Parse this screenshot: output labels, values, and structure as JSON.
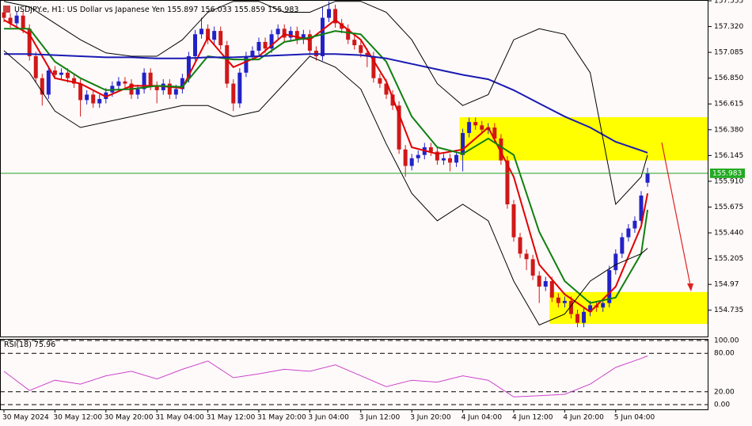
{
  "chart_data": [
    {
      "type": "candlestick",
      "title": "USDJPY.e, H1:  US Dollar vs Japanese Yen",
      "up_color": "#2222c8",
      "down_color": "#d01818",
      "ohlc": [
        [
          157.45,
          157.49,
          157.36,
          157.4
        ],
        [
          157.4,
          157.44,
          157.31,
          157.35
        ],
        [
          157.35,
          157.46,
          157.31,
          157.42
        ],
        [
          157.42,
          157.46,
          157.26,
          157.3
        ],
        [
          157.3,
          157.34,
          157.01,
          157.05
        ],
        [
          157.05,
          157.09,
          156.81,
          156.85
        ],
        [
          156.85,
          156.89,
          156.6,
          156.7
        ],
        [
          156.7,
          156.96,
          156.66,
          156.92
        ],
        [
          156.92,
          156.96,
          156.84,
          156.88
        ],
        [
          156.88,
          156.94,
          156.84,
          156.9
        ],
        [
          156.9,
          156.94,
          156.81,
          156.85
        ],
        [
          156.85,
          156.89,
          156.76,
          156.8
        ],
        [
          156.8,
          156.84,
          156.5,
          156.65
        ],
        [
          156.65,
          156.74,
          156.61,
          156.7
        ],
        [
          156.7,
          156.74,
          156.58,
          156.62
        ],
        [
          156.62,
          156.7,
          156.58,
          156.66
        ],
        [
          156.66,
          156.76,
          156.62,
          156.72
        ],
        [
          156.72,
          156.82,
          156.68,
          156.78
        ],
        [
          156.78,
          156.86,
          156.74,
          156.82
        ],
        [
          156.82,
          156.86,
          156.76,
          156.8
        ],
        [
          156.8,
          156.84,
          156.66,
          156.7
        ],
        [
          156.7,
          156.79,
          156.66,
          156.75
        ],
        [
          156.75,
          156.94,
          156.71,
          156.9
        ],
        [
          156.9,
          156.94,
          156.74,
          156.78
        ],
        [
          156.78,
          156.82,
          156.62,
          156.74
        ],
        [
          156.74,
          156.84,
          156.7,
          156.8
        ],
        [
          156.8,
          156.84,
          156.66,
          156.7
        ],
        [
          156.7,
          156.79,
          156.66,
          156.75
        ],
        [
          156.75,
          156.89,
          156.71,
          156.85
        ],
        [
          156.85,
          157.09,
          156.81,
          157.05
        ],
        [
          157.05,
          157.29,
          157.01,
          157.25
        ],
        [
          157.25,
          157.4,
          157.21,
          157.3
        ],
        [
          157.3,
          157.34,
          157.16,
          157.2
        ],
        [
          157.2,
          157.32,
          157.16,
          157.28
        ],
        [
          157.28,
          157.32,
          157.11,
          157.15
        ],
        [
          157.15,
          157.19,
          156.76,
          156.8
        ],
        [
          156.8,
          156.84,
          156.55,
          156.62
        ],
        [
          156.62,
          156.94,
          156.58,
          156.9
        ],
        [
          156.9,
          157.09,
          156.86,
          157.05
        ],
        [
          157.05,
          157.14,
          157.01,
          157.1
        ],
        [
          157.1,
          157.22,
          157.06,
          157.18
        ],
        [
          157.18,
          157.22,
          157.08,
          157.12
        ],
        [
          157.12,
          157.29,
          157.08,
          157.25
        ],
        [
          157.25,
          157.34,
          157.21,
          157.3
        ],
        [
          157.3,
          157.34,
          157.18,
          157.22
        ],
        [
          157.22,
          157.32,
          157.18,
          157.28
        ],
        [
          157.28,
          157.32,
          157.16,
          157.2
        ],
        [
          157.2,
          157.29,
          157.16,
          157.25
        ],
        [
          157.25,
          157.29,
          157.06,
          157.1
        ],
        [
          157.1,
          157.14,
          157.01,
          157.05
        ],
        [
          157.05,
          157.5,
          157.01,
          157.4
        ],
        [
          157.4,
          157.55,
          157.36,
          157.48
        ],
        [
          157.48,
          157.52,
          157.31,
          157.35
        ],
        [
          157.35,
          157.39,
          157.26,
          157.3
        ],
        [
          157.3,
          157.34,
          157.16,
          157.2
        ],
        [
          157.2,
          157.24,
          157.11,
          157.15
        ],
        [
          157.15,
          157.19,
          157.04,
          157.08
        ],
        [
          157.08,
          157.12,
          156.95,
          157.05
        ],
        [
          157.05,
          157.09,
          156.81,
          156.85
        ],
        [
          156.85,
          156.89,
          156.76,
          156.8
        ],
        [
          156.8,
          156.84,
          156.66,
          156.7
        ],
        [
          156.7,
          156.74,
          156.56,
          156.6
        ],
        [
          156.6,
          156.64,
          156.16,
          156.2
        ],
        [
          156.2,
          156.24,
          155.95,
          156.05
        ],
        [
          156.05,
          156.16,
          156.01,
          156.12
        ],
        [
          156.12,
          156.19,
          156.08,
          156.15
        ],
        [
          156.15,
          156.26,
          156.11,
          156.22
        ],
        [
          156.22,
          156.26,
          156.14,
          156.18
        ],
        [
          156.18,
          156.22,
          156.06,
          156.1
        ],
        [
          156.1,
          156.16,
          156.06,
          156.12
        ],
        [
          156.12,
          156.16,
          156.0,
          156.08
        ],
        [
          156.08,
          156.19,
          156.04,
          156.15
        ],
        [
          156.15,
          156.39,
          156.0,
          156.35
        ],
        [
          156.35,
          156.49,
          156.31,
          156.45
        ],
        [
          156.45,
          156.49,
          156.38,
          156.42
        ],
        [
          156.42,
          156.46,
          156.34,
          156.38
        ],
        [
          156.38,
          156.44,
          156.34,
          156.4
        ],
        [
          156.4,
          156.44,
          156.26,
          156.3
        ],
        [
          156.3,
          156.34,
          156.06,
          156.1
        ],
        [
          156.1,
          156.14,
          155.66,
          155.7
        ],
        [
          155.7,
          155.74,
          155.36,
          155.4
        ],
        [
          155.4,
          155.44,
          155.21,
          155.25
        ],
        [
          155.25,
          155.29,
          155.1,
          155.2
        ],
        [
          155.2,
          155.24,
          155.01,
          155.05
        ],
        [
          155.05,
          155.09,
          154.8,
          154.95
        ],
        [
          154.95,
          155.04,
          154.91,
          155.0
        ],
        [
          155.0,
          155.04,
          154.81,
          154.85
        ],
        [
          154.85,
          154.89,
          154.76,
          154.8
        ],
        [
          154.8,
          154.86,
          154.76,
          154.82
        ],
        [
          154.82,
          154.86,
          154.66,
          154.7
        ],
        [
          154.7,
          154.74,
          154.58,
          154.62
        ],
        [
          154.62,
          154.76,
          154.58,
          154.72
        ],
        [
          154.72,
          154.82,
          154.68,
          154.78
        ],
        [
          154.78,
          154.82,
          154.72,
          154.76
        ],
        [
          154.76,
          154.84,
          154.72,
          154.8
        ],
        [
          154.8,
          155.14,
          154.76,
          155.1
        ],
        [
          155.1,
          155.29,
          155.06,
          155.25
        ],
        [
          155.25,
          155.44,
          155.21,
          155.4
        ],
        [
          155.4,
          155.52,
          155.36,
          155.48
        ],
        [
          155.48,
          155.59,
          155.44,
          155.55
        ],
        [
          155.55,
          155.82,
          155.51,
          155.78
        ],
        [
          155.897,
          156.033,
          155.859,
          155.983
        ]
      ],
      "series": [
        {
          "color": "#e00000",
          "x": [
            0,
            4,
            8,
            12,
            16,
            20,
            24,
            28,
            32,
            36,
            40,
            44,
            48,
            52,
            56,
            60,
            64,
            68,
            72,
            76,
            80,
            84,
            88,
            92,
            96,
            100,
            101
          ],
          "values": [
            157.38,
            157.25,
            156.85,
            156.8,
            156.68,
            156.78,
            156.78,
            156.76,
            157.22,
            156.95,
            157.05,
            157.25,
            157.2,
            157.38,
            157.2,
            156.82,
            156.22,
            156.16,
            156.2,
            156.4,
            155.95,
            155.15,
            154.88,
            154.72,
            154.95,
            155.5,
            155.8
          ]
        },
        {
          "color": "#108010",
          "x": [
            0,
            4,
            8,
            12,
            16,
            20,
            24,
            28,
            32,
            36,
            40,
            44,
            48,
            52,
            56,
            60,
            64,
            68,
            72,
            76,
            80,
            84,
            88,
            92,
            96,
            100,
            101
          ],
          "values": [
            157.3,
            157.3,
            157.0,
            156.85,
            156.74,
            156.75,
            156.78,
            156.77,
            157.05,
            157.02,
            157.02,
            157.18,
            157.22,
            157.28,
            157.25,
            157.0,
            156.5,
            156.22,
            156.16,
            156.3,
            156.15,
            155.45,
            155.0,
            154.8,
            154.85,
            155.25,
            155.65
          ]
        },
        {
          "color": "#1a1ab4",
          "x": [
            0,
            4,
            8,
            12,
            16,
            20,
            24,
            28,
            32,
            36,
            40,
            44,
            48,
            52,
            56,
            60,
            64,
            68,
            72,
            76,
            80,
            84,
            88,
            92,
            96,
            100,
            101
          ],
          "values": [
            157.07,
            157.07,
            157.06,
            157.05,
            157.04,
            157.04,
            157.03,
            157.03,
            157.04,
            157.04,
            157.05,
            157.06,
            157.07,
            157.07,
            157.06,
            157.03,
            156.98,
            156.93,
            156.88,
            156.84,
            156.74,
            156.62,
            156.5,
            156.4,
            156.27,
            156.19,
            156.17
          ]
        },
        {
          "color": "#000000",
          "x": [
            0,
            4,
            8,
            12,
            16,
            20,
            24,
            28,
            32,
            36,
            40,
            44,
            48,
            52,
            56,
            60,
            64,
            68,
            72,
            76,
            80,
            84,
            88,
            92,
            96,
            100,
            101
          ],
          "values": [
            157.55,
            157.5,
            157.35,
            157.2,
            157.08,
            157.05,
            157.05,
            157.2,
            157.45,
            157.55,
            157.55,
            157.45,
            157.45,
            157.55,
            157.55,
            157.45,
            157.2,
            156.8,
            156.6,
            156.7,
            157.2,
            157.3,
            157.25,
            156.9,
            155.7,
            155.95,
            156.15
          ]
        },
        {
          "color": "#000000",
          "x": [
            0,
            4,
            8,
            12,
            16,
            20,
            24,
            28,
            32,
            36,
            40,
            44,
            48,
            52,
            56,
            60,
            64,
            68,
            72,
            76,
            80,
            84,
            88,
            92,
            96,
            100,
            101
          ],
          "values": [
            157.1,
            156.9,
            156.55,
            156.4,
            156.45,
            156.5,
            156.55,
            156.6,
            156.6,
            156.5,
            156.55,
            156.8,
            157.05,
            156.95,
            156.75,
            156.25,
            155.8,
            155.55,
            155.7,
            155.55,
            155.0,
            154.6,
            154.7,
            155.0,
            155.15,
            155.25,
            155.3
          ]
        }
      ],
      "zones": [
        {
          "start": 71.5,
          "from": 156.494,
          "to": 156.1,
          "color": "#ffff00"
        },
        {
          "start": 85.6,
          "from": 154.9,
          "to": 154.61,
          "color": "#ffff00"
        }
      ],
      "ylim": [
        154.495,
        157.555
      ],
      "yticks": [
        157.555,
        {
          "value": 157.32,
          "label": "157.320"
        },
        157.085,
        {
          "value": 156.85,
          "label": "156.850"
        },
        156.615,
        {
          "value": 156.38,
          "label": "156.380"
        },
        156.145,
        {
          "value": 155.91,
          "label": "155.910"
        },
        155.675,
        {
          "value": 155.44,
          "label": "155.440"
        },
        155.205,
        154.97,
        154.735
      ],
      "xticks": [
        {
          "value": 0,
          "label": "30 May 2024"
        },
        {
          "value": 8,
          "label": "30 May 12:00"
        },
        {
          "value": 16,
          "label": "30 May 20:00"
        },
        {
          "value": 24,
          "label": "31 May 04:00"
        },
        {
          "value": 32,
          "label": "31 May 12:00"
        },
        {
          "value": 40,
          "label": "31 May 20:00"
        },
        {
          "value": 48,
          "label": "3 Jun 04:00"
        },
        {
          "value": 56,
          "label": "3 Jun 12:00"
        },
        {
          "value": 64,
          "label": "3 Jun 20:00"
        },
        {
          "value": 72,
          "label": "4 Jun 04:00"
        },
        {
          "value": 80,
          "label": "4 Jun 12:00"
        },
        {
          "value": 88,
          "label": "4 Jun 20:00"
        },
        {
          "value": 96,
          "label": "5 Jun 04:00"
        }
      ]
    },
    {
      "type": "line",
      "title": "RSI(18)",
      "color": "#cc44cc",
      "x": [
        0,
        4,
        8,
        12,
        16,
        20,
        24,
        28,
        32,
        36,
        40,
        44,
        48,
        52,
        56,
        60,
        64,
        68,
        72,
        76,
        80,
        84,
        88,
        92,
        96,
        100,
        101
      ],
      "values": [
        52,
        22,
        38,
        32,
        45,
        52,
        40,
        55,
        68,
        42,
        48,
        55,
        52,
        62,
        45,
        28,
        38,
        35,
        45,
        38,
        12,
        14,
        16,
        32,
        58,
        72,
        75.96
      ],
      "ylim": [
        0,
        100
      ],
      "yticks": [
        {
          "value": 100,
          "label": "100.00"
        },
        {
          "value": 80,
          "label": "80.00"
        },
        {
          "value": 20,
          "label": "20.00"
        },
        {
          "value": 0,
          "label": "0.00"
        }
      ]
    }
  ]
}
